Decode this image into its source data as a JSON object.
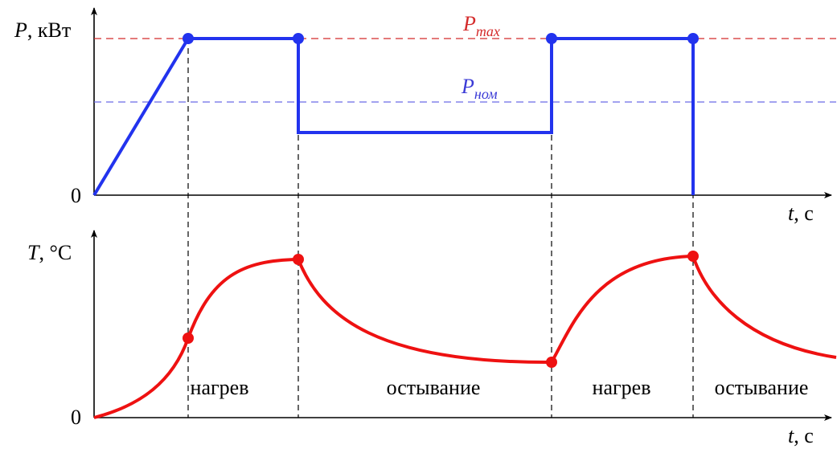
{
  "power_plot": {
    "y_axis_symbol": "P",
    "y_axis_unit": ", кВт",
    "x_axis_symbol": "t",
    "x_axis_unit": ", с",
    "origin_label": "0",
    "pmax": {
      "letter": "P",
      "subscript": "max",
      "color": "#d42a2a"
    },
    "pnom": {
      "letter": "P",
      "subscript": "ном",
      "color": "#3b3bd6"
    },
    "line_color": "#2233ee"
  },
  "temperature_plot": {
    "y_axis_symbol": "T",
    "y_axis_unit": ", °C",
    "x_axis_symbol": "t",
    "x_axis_unit": ", с",
    "origin_label": "0",
    "line_color": "#ee1111"
  },
  "phases": [
    {
      "label": "нагрев"
    },
    {
      "label": "остывание"
    },
    {
      "label": "нагрев"
    },
    {
      "label": "остывание"
    }
  ]
}
